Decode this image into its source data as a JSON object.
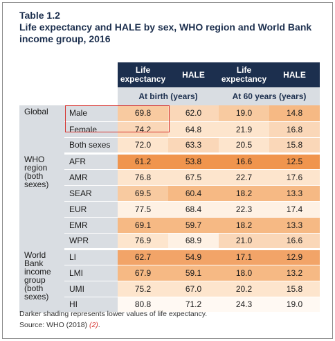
{
  "title": {
    "number": "Table 1.2",
    "text": "Life expectancy and HALE by sex, WHO region and World Bank income group, 2016"
  },
  "table": {
    "col_headers": [
      "Life expectancy",
      "HALE",
      "Life expectancy",
      "HALE"
    ],
    "sub_headers": [
      "At birth (years)",
      "At 60 years (years)"
    ],
    "groups": [
      {
        "name": "Global",
        "rows": [
          {
            "label": "Male",
            "values": [
              "69.8",
              "62.0",
              "19.0",
              "14.8"
            ],
            "shades": [
              "#f8caa0",
              "#fad7b8",
              "#f8caa0",
              "#f6b984"
            ]
          },
          {
            "label": "Female",
            "values": [
              "74.2",
              "64.8",
              "21.9",
              "16.8"
            ],
            "shades": [
              "#fad7b8",
              "#fde5cd",
              "#fde5cd",
              "#fad7b8"
            ]
          },
          {
            "label": "Both sexes",
            "values": [
              "72.0",
              "63.3",
              "20.5",
              "15.8"
            ],
            "shades": [
              "#fde5cd",
              "#fad7b8",
              "#fde5cd",
              "#fad7b8"
            ]
          }
        ]
      },
      {
        "name": "WHO region (both sexes)",
        "rows": [
          {
            "label": "AFR",
            "values": [
              "61.2",
              "53.8",
              "16.6",
              "12.5"
            ],
            "shades": [
              "#f0954e",
              "#f0954e",
              "#f0954e",
              "#f0954e"
            ]
          },
          {
            "label": "AMR",
            "values": [
              "76.8",
              "67.5",
              "22.7",
              "17.6"
            ],
            "shades": [
              "#fde5cd",
              "#fde5cd",
              "#fde5cd",
              "#fde5cd"
            ]
          },
          {
            "label": "SEAR",
            "values": [
              "69.5",
              "60.4",
              "18.2",
              "13.3"
            ],
            "shades": [
              "#f8caa0",
              "#f6b984",
              "#f6b984",
              "#f6b984"
            ]
          },
          {
            "label": "EUR",
            "values": [
              "77.5",
              "68.4",
              "22.3",
              "17.4"
            ],
            "shades": [
              "#fef1e4",
              "#fef1e4",
              "#fef1e4",
              "#fef1e4"
            ]
          },
          {
            "label": "EMR",
            "values": [
              "69.1",
              "59.7",
              "18.2",
              "13.3"
            ],
            "shades": [
              "#f6b984",
              "#f6b984",
              "#f6b984",
              "#f6b984"
            ]
          },
          {
            "label": "WPR",
            "values": [
              "76.9",
              "68.9",
              "21.0",
              "16.6"
            ],
            "shades": [
              "#fde5cd",
              "#fef1e4",
              "#fad7b8",
              "#fad7b8"
            ]
          }
        ]
      },
      {
        "name": "World Bank income group (both sexes)",
        "rows": [
          {
            "label": "LI",
            "values": [
              "62.7",
              "54.9",
              "17.1",
              "12.9"
            ],
            "shades": [
              "#f2a468",
              "#f2a468",
              "#f2a468",
              "#f2a468"
            ]
          },
          {
            "label": "LMI",
            "values": [
              "67.9",
              "59.1",
              "18.0",
              "13.2"
            ],
            "shades": [
              "#f6b984",
              "#f6b984",
              "#f6b984",
              "#f6b984"
            ]
          },
          {
            "label": "UMI",
            "values": [
              "75.2",
              "67.0",
              "20.2",
              "15.8"
            ],
            "shades": [
              "#fde5cd",
              "#fde5cd",
              "#fde5cd",
              "#fde5cd"
            ]
          },
          {
            "label": "HI",
            "values": [
              "80.8",
              "71.2",
              "24.3",
              "19.0"
            ],
            "shades": [
              "#fff9f3",
              "#fff9f3",
              "#fff9f3",
              "#fff9f3"
            ]
          }
        ]
      }
    ]
  },
  "notes": {
    "shading": "Darker shading represents lower values of life expectancy.",
    "source_prefix": "Source: WHO (2018) ",
    "source_ref": "(2)",
    "source_suffix": "."
  },
  "colors": {
    "header_dark": "#1c2f4e",
    "header_light": "#d9dde2",
    "highlight_box": "#d6332f"
  }
}
